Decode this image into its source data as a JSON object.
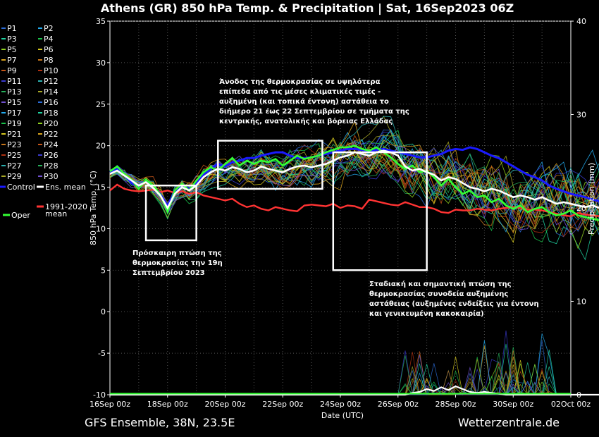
{
  "chart_data": {
    "type": "line",
    "title": "Athens  (GR)  850 hPa Temp. & Precipitation | Sat, 16Sep2023 06Z",
    "xlabel": "Date (UTC)",
    "ylabel": "850 hPa Temp. (°C)",
    "y2label": "Precipitation (mm)",
    "x_ticks": [
      "16Sep 00z",
      "18Sep 00z",
      "20Sep 00z",
      "22Sep 00z",
      "24Sep 00z",
      "26Sep 00z",
      "28Sep 00z",
      "30Sep 00z",
      "02Oct 00z"
    ],
    "y_ticks": [
      "35",
      "30",
      "25",
      "20",
      "15",
      "10",
      "5",
      "0",
      "-5",
      "-10"
    ],
    "y2_ticks": [
      "40",
      "30",
      "20",
      "10",
      "0"
    ],
    "ylim": [
      -10,
      35
    ],
    "y2lim": [
      0,
      40
    ],
    "x_range_hours": [
      0,
      384
    ],
    "x_step_hours": 6,
    "grid": true,
    "legend": {
      "placement": "left",
      "members": [
        "P1",
        "P2",
        "P3",
        "P4",
        "P5",
        "P6",
        "P7",
        "P8",
        "P9",
        "P10",
        "P11",
        "P12",
        "P13",
        "P14",
        "P15",
        "P16",
        "P17",
        "P18",
        "P19",
        "P20",
        "P21",
        "P22",
        "P23",
        "P24",
        "P25",
        "P26",
        "P27",
        "P28",
        "P29",
        "P30"
      ],
      "control": "Control",
      "ens_mean": "Ens. mean",
      "oper": "Oper",
      "clim_line1": "1991-2020",
      "clim_line2": "mean"
    },
    "series": {
      "control": {
        "name": "Control",
        "color": "#1a1aff",
        "values": [
          16.8,
          17.2,
          16.5,
          15.5,
          15.0,
          15.8,
          15.0,
          14.2,
          12.8,
          14.5,
          15.2,
          14.8,
          15.5,
          16.5,
          17.2,
          17.8,
          17.5,
          18.0,
          18.2,
          18.5,
          18.5,
          18.8,
          19.0,
          19.2,
          19.2,
          18.8,
          18.5,
          18.5,
          18.6,
          18.8,
          19.0,
          19.2,
          19.4,
          19.6,
          19.6,
          19.5,
          19.3,
          19.5,
          19.6,
          19.4,
          19.2,
          19.0,
          18.8,
          18.6,
          18.6,
          18.8,
          19.0,
          19.4,
          19.6,
          19.5,
          19.8,
          19.6,
          19.2,
          18.8,
          18.5,
          18.0,
          17.5,
          17.0,
          16.5,
          16.2,
          15.8,
          15.2,
          14.8,
          14.5,
          14.2,
          14.0,
          13.8,
          13.5,
          13.3,
          13.1
        ]
      },
      "ens_mean": {
        "name": "Ens. mean",
        "color": "#ffffff",
        "values": [
          16.6,
          17.0,
          16.4,
          15.8,
          15.2,
          15.6,
          14.9,
          14.0,
          12.5,
          14.2,
          15.0,
          14.6,
          15.2,
          16.2,
          16.8,
          17.2,
          17.0,
          17.4,
          17.2,
          16.8,
          17.0,
          17.5,
          17.2,
          17.0,
          16.8,
          17.2,
          17.5,
          17.6,
          17.4,
          17.6,
          17.8,
          18.2,
          18.6,
          18.8,
          19.2,
          19.0,
          18.8,
          19.2,
          19.4,
          19.2,
          18.8,
          17.5,
          17.0,
          17.2,
          16.8,
          16.5,
          15.8,
          16.2,
          16.0,
          15.5,
          15.0,
          14.8,
          14.5,
          14.8,
          14.6,
          14.2,
          13.8,
          14.0,
          13.8,
          13.5,
          13.8,
          13.4,
          13.0,
          13.2,
          13.0,
          12.8,
          12.6,
          12.8,
          12.5,
          12.3
        ]
      },
      "oper": {
        "name": "Oper",
        "color": "#33ff33",
        "values": [
          16.9,
          17.5,
          16.6,
          15.9,
          14.8,
          15.9,
          15.2,
          14.1,
          12.0,
          14.6,
          15.4,
          14.6,
          15.8,
          16.8,
          17.4,
          17.0,
          17.8,
          18.5,
          17.6,
          18.2,
          17.8,
          18.2,
          18.0,
          18.4,
          17.6,
          18.2,
          18.8,
          18.4,
          18.6,
          18.8,
          19.2,
          19.5,
          19.8,
          19.8,
          20.0,
          19.6,
          19.4,
          19.8,
          19.2,
          18.6,
          17.8,
          17.2,
          17.6,
          16.8,
          17.0,
          16.2,
          15.2,
          16.0,
          15.0,
          14.2,
          14.6,
          13.8,
          14.0,
          13.2,
          13.6,
          12.8,
          12.4,
          12.8,
          12.0,
          12.4,
          12.6,
          12.0,
          11.6,
          11.8,
          12.2,
          11.6,
          11.4,
          11.2,
          11.0,
          11.8
        ]
      },
      "clim_mean": {
        "name": "1991-2020 mean",
        "color": "#ff3333",
        "values": [
          14.6,
          15.3,
          14.8,
          14.6,
          14.5,
          14.6,
          14.7,
          14.4,
          14.6,
          14.3,
          14.5,
          14.2,
          14.4,
          14.0,
          13.8,
          13.6,
          13.4,
          13.6,
          13.0,
          12.6,
          12.8,
          12.4,
          12.2,
          12.6,
          12.4,
          12.2,
          12.1,
          12.8,
          12.9,
          12.8,
          12.7,
          13.0,
          12.5,
          12.8,
          12.7,
          12.4,
          13.5,
          13.3,
          13.1,
          12.9,
          12.8,
          13.2,
          12.9,
          12.6,
          12.6,
          12.4,
          12.0,
          11.9,
          12.3,
          12.2,
          12.2,
          12.4,
          12.3,
          12.2,
          12.4,
          12.5,
          12.6,
          12.5,
          12.3,
          12.3,
          12.2,
          12.0,
          11.8,
          11.6,
          11.5,
          11.9,
          11.7,
          11.6,
          11.5,
          12.0
        ]
      },
      "precip_mean": {
        "name": "Ens. mean precipitation",
        "color": "#ffffff",
        "values": [
          0,
          0,
          0,
          0,
          0,
          0,
          0,
          0,
          0,
          0,
          0,
          0,
          0,
          0,
          0,
          0,
          0,
          0,
          0,
          0,
          0,
          0,
          0,
          0,
          0,
          0,
          0,
          0,
          0,
          0,
          0,
          0,
          0,
          0,
          0,
          0,
          0,
          0,
          0,
          0,
          0,
          0,
          0.2,
          0.3,
          0.6,
          0.4,
          0.8,
          0.5,
          0.9,
          0.6,
          0.3,
          0.2,
          0.3,
          0.2,
          0.1,
          0,
          0,
          0,
          0,
          0,
          0,
          0,
          0,
          0,
          0,
          0,
          0,
          0,
          0,
          0
        ]
      },
      "members_band": {
        "spread_start": 0.5,
        "spread_growth": 0.06
      }
    }
  },
  "annotations": {
    "box1": {
      "line1": "Πρόσκαιρη πτώση της",
      "line2": "θερμοκρασίας την 19η",
      "line3": "Σεπτεμβρίου 2023"
    },
    "box2": {
      "line1": "Άνοδος της θερμοκρασίας σε υψηλότερα",
      "line2": "επίπεδα από τις μέσες κλιματικές τιμές -",
      "line3": "αυξημένη (και τοπικά έντονη) αστάθεια το",
      "line4": "διήμερο 21 έως 22 Σεπτεμβρίου σε τμήματα της",
      "line5": "κεντρικής, ανατολικής και βόρειας Ελλάδας"
    },
    "box3": {
      "line1": "Σταδιακή και σημαντική πτώση της",
      "line2": "θερμοκρασίας συνοδεία αυξημένης",
      "line3": "αστάθειας (αυξημένες ενδείξεις για έντονη",
      "line4": "και γενικευμένη κακοκαιρία)"
    }
  },
  "footer": {
    "left": "GFS Ensemble, 38N, 23.5E",
    "right": "Wetterzentrale.de"
  }
}
